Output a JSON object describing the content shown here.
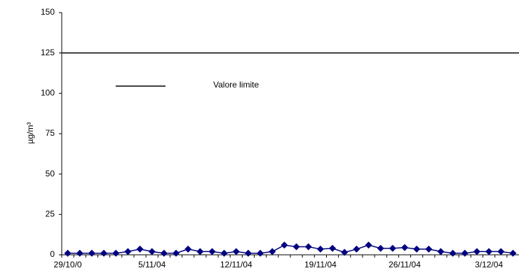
{
  "chart_data": {
    "type": "line",
    "y_label": "µg/m³",
    "categories": [
      "29/10/0",
      null,
      null,
      null,
      null,
      null,
      null,
      "5/11/04",
      null,
      null,
      null,
      null,
      null,
      null,
      "12/11/04",
      null,
      null,
      null,
      null,
      null,
      null,
      "19/11/04",
      null,
      null,
      null,
      null,
      null,
      null,
      "26/11/04",
      null,
      null,
      null,
      null,
      null,
      null,
      "3/12/04",
      null,
      null
    ],
    "series": [
      {
        "name": null,
        "color": "#000080",
        "values": [
          1,
          1,
          1,
          1,
          1,
          2,
          3.5,
          2,
          1,
          1,
          3.5,
          2,
          2,
          1,
          2,
          1,
          1,
          2,
          6,
          5,
          5,
          3.5,
          4,
          1.5,
          3.5,
          6,
          4,
          4,
          4.5,
          3.5,
          3.5,
          2,
          1,
          1,
          2,
          2,
          2,
          1
        ]
      }
    ],
    "limit": {
      "name": "Valore limite",
      "value": 125,
      "color": "#000000"
    },
    "ylim": [
      0,
      150
    ],
    "yticks": [
      0,
      25,
      50,
      75,
      100,
      125,
      150
    ],
    "grid": false
  }
}
